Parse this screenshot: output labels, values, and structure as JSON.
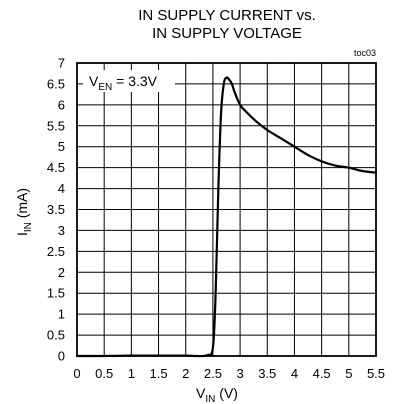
{
  "chart_data": {
    "type": "line",
    "title": [
      "IN SUPPLY CURRENT vs.",
      "IN SUPPLY VOLTAGE"
    ],
    "figure_id": "toc03",
    "xlabel": {
      "main": "V",
      "sub": "IN",
      "unit": " (V)"
    },
    "ylabel": {
      "main": "I",
      "sub": "IN",
      "unit": " (mA)"
    },
    "xlim": [
      0,
      5.5
    ],
    "ylim": [
      0,
      7
    ],
    "xticks": [
      "0",
      "0.5",
      "1",
      "1.5",
      "2",
      "2.5",
      "3",
      "3.5",
      "4",
      "4.5",
      "5",
      "5.5"
    ],
    "yticks": [
      "0",
      "0.5",
      "1",
      "1.5",
      "2",
      "2.5",
      "3",
      "3.5",
      "4",
      "4.5",
      "5",
      "5.5",
      "6",
      "6.5",
      "7"
    ],
    "grid": true,
    "annotation": {
      "main": "V",
      "sub": "EN",
      "rest": " = 3.3V"
    },
    "series": [
      {
        "x": [
          0,
          0.5,
          1.0,
          1.5,
          2.0,
          2.2,
          2.4,
          2.5,
          2.55,
          2.6,
          2.65,
          2.7,
          2.75,
          2.8,
          2.85,
          2.9,
          3.0,
          3.1,
          3.3,
          3.5,
          3.75,
          4.0,
          4.25,
          4.5,
          4.75,
          5.0,
          5.25,
          5.5
        ],
        "y": [
          0.0,
          0.0,
          0.01,
          0.01,
          0.01,
          0.0,
          0.02,
          0.2,
          1.5,
          4.0,
          5.8,
          6.5,
          6.65,
          6.6,
          6.5,
          6.3,
          6.0,
          5.85,
          5.6,
          5.4,
          5.2,
          5.0,
          4.8,
          4.65,
          4.55,
          4.5,
          4.42,
          4.38
        ]
      }
    ]
  }
}
